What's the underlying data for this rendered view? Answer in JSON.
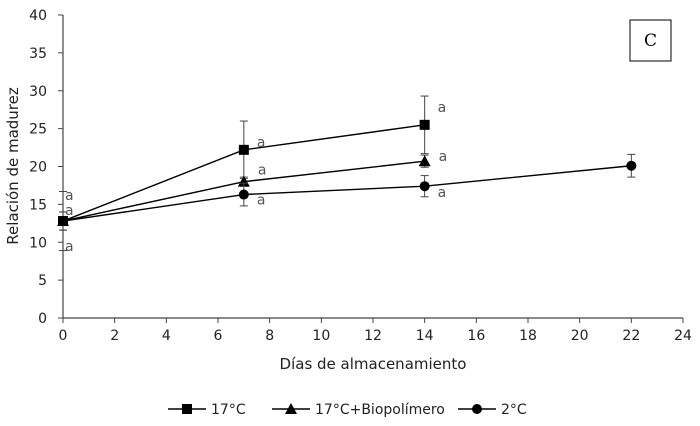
{
  "chart_data": {
    "type": "line",
    "title": "",
    "panel_label": "C",
    "xlabel": "Días de almacenamiento",
    "ylabel": "Relación de madurez",
    "xlim": [
      0,
      24
    ],
    "ylim": [
      0,
      40
    ],
    "xticks": [
      "0",
      "2",
      "4",
      "6",
      "8",
      "10",
      "12",
      "14",
      "16",
      "18",
      "20",
      "22",
      "24"
    ],
    "yticks": [
      "0",
      "5",
      "10",
      "15",
      "20",
      "25",
      "30",
      "35",
      "40"
    ],
    "grid": false,
    "legend_position": "bottom",
    "series": [
      {
        "name": "17°C",
        "marker": "square",
        "x": [
          0,
          7,
          14
        ],
        "y": [
          12.8,
          22.2,
          25.5
        ],
        "error": [
          1.2,
          3.8,
          3.8
        ],
        "labels": [
          "a",
          "a",
          "a"
        ]
      },
      {
        "name": "17°C+Biopolímero",
        "marker": "triangle",
        "x": [
          0,
          7,
          14
        ],
        "y": [
          12.8,
          18.0,
          20.7
        ],
        "error": [
          1.2,
          0.6,
          0.8
        ],
        "labels": [
          "a",
          "a",
          "a"
        ]
      },
      {
        "name": "2°C",
        "marker": "circle",
        "x": [
          0,
          7,
          14,
          22
        ],
        "y": [
          12.8,
          16.3,
          17.4,
          20.1
        ],
        "error": [
          3.9,
          1.5,
          1.4,
          1.5
        ],
        "labels": [
          "a",
          "a",
          "a",
          ""
        ]
      }
    ]
  }
}
